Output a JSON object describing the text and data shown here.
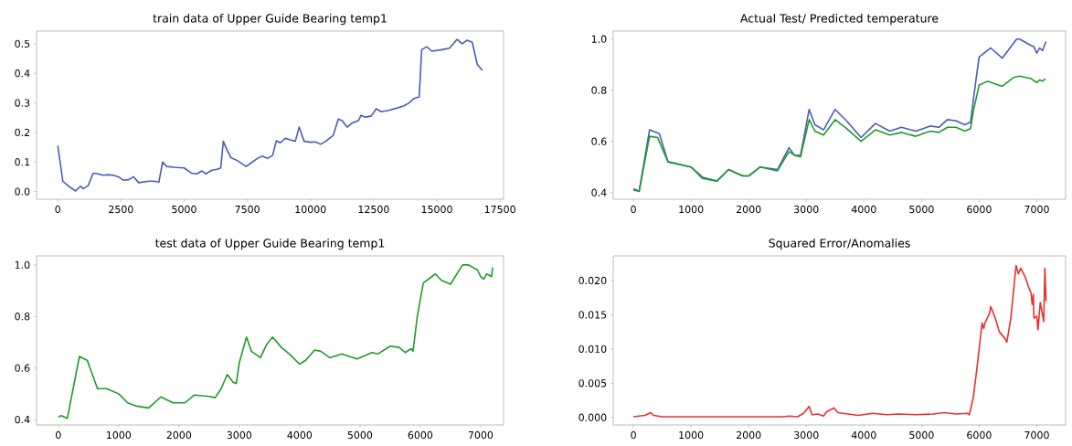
{
  "chart_data": [
    {
      "type": "line",
      "title": "train data of Upper Guide Bearing temp1",
      "xlim": [
        -840,
        17640
      ],
      "ylim": [
        -0.026,
        0.543
      ],
      "xticks": [
        0,
        2500,
        5000,
        7500,
        10000,
        12500,
        15000,
        17500
      ],
      "yticks": [
        {
          "value": 0,
          "label": "0.0"
        },
        0.1,
        0.2,
        0.3,
        0.4,
        0.5
      ],
      "series": [
        {
          "color": "#4a5bb8",
          "x": [
            0,
            200,
            400,
            600,
            700,
            900,
            1000,
            1200,
            1400,
            1600,
            1800,
            2000,
            2200,
            2400,
            2600,
            2800,
            3000,
            3200,
            3600,
            3800,
            4000,
            4150,
            4300,
            4600,
            5000,
            5300,
            5500,
            5700,
            5850,
            6100,
            6300,
            6450,
            6550,
            6700,
            6850,
            7100,
            7450,
            7700,
            7900,
            8100,
            8300,
            8500,
            8650,
            8800,
            9000,
            9200,
            9400,
            9550,
            9750,
            10000,
            10200,
            10400,
            10600,
            10900,
            11100,
            11250,
            11450,
            11650,
            11900,
            12000,
            12150,
            12400,
            12600,
            12800,
            13100,
            13400,
            13700,
            13900,
            14100,
            14300,
            14400,
            14600,
            14800,
            15200,
            15500,
            15800,
            16000,
            16200,
            16400,
            16600,
            16800
          ],
          "values": [
            0.155,
            0.035,
            0.02,
            0.008,
            0.002,
            0.018,
            0.01,
            0.02,
            0.062,
            0.06,
            0.055,
            0.057,
            0.055,
            0.05,
            0.038,
            0.04,
            0.05,
            0.03,
            0.035,
            0.035,
            0.032,
            0.1,
            0.085,
            0.082,
            0.08,
            0.062,
            0.06,
            0.07,
            0.06,
            0.072,
            0.075,
            0.08,
            0.17,
            0.14,
            0.115,
            0.105,
            0.085,
            0.1,
            0.112,
            0.12,
            0.112,
            0.122,
            0.172,
            0.165,
            0.18,
            0.175,
            0.17,
            0.218,
            0.17,
            0.167,
            0.168,
            0.16,
            0.17,
            0.19,
            0.245,
            0.24,
            0.218,
            0.232,
            0.24,
            0.258,
            0.252,
            0.255,
            0.28,
            0.27,
            0.275,
            0.282,
            0.29,
            0.3,
            0.315,
            0.32,
            0.48,
            0.49,
            0.475,
            0.48,
            0.485,
            0.515,
            0.5,
            0.512,
            0.505,
            0.43,
            0.41
          ]
        }
      ]
    },
    {
      "type": "line",
      "title": "Actual Test/ Predicted temperature",
      "xlim": [
        -350,
        7500
      ],
      "ylim": [
        0.374,
        1.031
      ],
      "xticks": [
        0,
        1000,
        2000,
        3000,
        4000,
        5000,
        6000,
        7000
      ],
      "yticks": [
        0.4,
        0.6,
        0.8,
        {
          "value": 1,
          "label": "1.0"
        }
      ],
      "series": [
        {
          "color": "#4a5bb8",
          "x": [
            0,
            100,
            280,
            450,
            600,
            1000,
            1200,
            1450,
            1650,
            1900,
            2000,
            2200,
            2500,
            2700,
            2800,
            2900,
            3050,
            3150,
            3300,
            3500,
            3700,
            3950,
            4200,
            4450,
            4650,
            4900,
            5150,
            5300,
            5450,
            5600,
            5750,
            5850,
            5950,
            6000,
            6200,
            6400,
            6650,
            6700,
            6900,
            6950,
            7000,
            7050,
            7100,
            7160
          ],
          "values": [
            0.415,
            0.405,
            0.645,
            0.63,
            0.52,
            0.5,
            0.46,
            0.445,
            0.49,
            0.465,
            0.465,
            0.5,
            0.49,
            0.575,
            0.545,
            0.545,
            0.725,
            0.665,
            0.645,
            0.725,
            0.68,
            0.615,
            0.67,
            0.64,
            0.655,
            0.64,
            0.66,
            0.655,
            0.685,
            0.68,
            0.665,
            0.675,
            0.85,
            0.93,
            0.965,
            0.925,
            1.0,
            1.0,
            0.975,
            0.97,
            0.945,
            0.965,
            0.955,
            0.99
          ]
        },
        {
          "color": "#1f9a2a",
          "x": [
            0,
            100,
            280,
            420,
            600,
            1000,
            1200,
            1450,
            1650,
            1900,
            2000,
            2200,
            2500,
            2700,
            2800,
            2900,
            3050,
            3150,
            3300,
            3500,
            3700,
            3950,
            4200,
            4450,
            4650,
            4900,
            5150,
            5300,
            5450,
            5600,
            5750,
            5850,
            5900,
            6000,
            6150,
            6400,
            6600,
            6700,
            6900,
            7000,
            7050,
            7100,
            7150
          ],
          "values": [
            0.41,
            0.405,
            0.62,
            0.615,
            0.52,
            0.5,
            0.455,
            0.445,
            0.49,
            0.465,
            0.465,
            0.5,
            0.485,
            0.56,
            0.545,
            0.54,
            0.685,
            0.64,
            0.625,
            0.685,
            0.65,
            0.6,
            0.645,
            0.625,
            0.635,
            0.62,
            0.64,
            0.635,
            0.655,
            0.655,
            0.64,
            0.65,
            0.72,
            0.82,
            0.835,
            0.815,
            0.85,
            0.855,
            0.845,
            0.83,
            0.84,
            0.835,
            0.845
          ]
        }
      ]
    },
    {
      "type": "line",
      "title": "test data of Upper Guide Bearing temp1",
      "xlim": [
        -360,
        7380
      ],
      "ylim": [
        0.379,
        1.035
      ],
      "xticks": [
        0,
        1000,
        2000,
        3000,
        4000,
        5000,
        6000,
        7000
      ],
      "yticks": [
        0.4,
        0.6,
        0.8,
        {
          "value": 1,
          "label": "1.0"
        }
      ],
      "series": [
        {
          "color": "#1f9a2a",
          "x": [
            0,
            50,
            150,
            350,
            480,
            650,
            800,
            1000,
            1150,
            1300,
            1500,
            1700,
            1900,
            2100,
            2250,
            2500,
            2600,
            2700,
            2800,
            2900,
            2950,
            3000,
            3120,
            3200,
            3350,
            3450,
            3550,
            3700,
            3850,
            4000,
            4100,
            4250,
            4350,
            4500,
            4700,
            4950,
            5200,
            5300,
            5500,
            5650,
            5750,
            5850,
            5880,
            5950,
            6050,
            6250,
            6350,
            6500,
            6700,
            6800,
            6950,
            7000,
            7050,
            7100,
            7180,
            7200
          ],
          "values": [
            0.41,
            0.415,
            0.405,
            0.645,
            0.63,
            0.52,
            0.52,
            0.5,
            0.465,
            0.452,
            0.445,
            0.488,
            0.465,
            0.465,
            0.495,
            0.49,
            0.485,
            0.52,
            0.575,
            0.545,
            0.54,
            0.62,
            0.72,
            0.665,
            0.64,
            0.69,
            0.72,
            0.68,
            0.65,
            0.615,
            0.63,
            0.67,
            0.665,
            0.64,
            0.655,
            0.635,
            0.66,
            0.655,
            0.685,
            0.68,
            0.66,
            0.675,
            0.665,
            0.8,
            0.93,
            0.965,
            0.94,
            0.925,
            1.0,
            1.0,
            0.98,
            0.955,
            0.945,
            0.965,
            0.955,
            0.99
          ]
        }
      ]
    },
    {
      "type": "line",
      "title": "Squared Error/Anomalies",
      "xlim": [
        -350,
        7500
      ],
      "ylim": [
        -0.0011,
        0.0236
      ],
      "xticks": [
        0,
        1000,
        2000,
        3000,
        4000,
        5000,
        6000,
        7000
      ],
      "yticks": [
        {
          "value": 0,
          "label": "0.000"
        },
        0.005,
        {
          "value": 0.01,
          "label": "0.010"
        },
        0.015,
        {
          "value": 0.02,
          "label": "0.020"
        }
      ],
      "series": [
        {
          "color": "#e8312f",
          "x": [
            0,
            200,
            300,
            350,
            500,
            2600,
            2700,
            2850,
            2950,
            3050,
            3100,
            3200,
            3300,
            3350,
            3480,
            3550,
            3900,
            4150,
            4400,
            4600,
            4900,
            5200,
            5400,
            5600,
            5800,
            5830,
            5900,
            5980,
            6050,
            6080,
            6100,
            6180,
            6200,
            6280,
            6350,
            6450,
            6480,
            6550,
            6640,
            6680,
            6720,
            6800,
            6860,
            6900,
            6920,
            6940,
            6950,
            7000,
            7020,
            7060,
            7120,
            7140,
            7160
          ],
          "values": [
            0.0001,
            0.0003,
            0.0007,
            0.0003,
            0.0001,
            0.0001,
            0.0002,
            0.0001,
            0.0006,
            0.0016,
            0.0004,
            0.0005,
            0.0002,
            0.0008,
            0.0014,
            0.0007,
            0.0003,
            0.0006,
            0.0004,
            0.0005,
            0.0004,
            0.0005,
            0.0007,
            0.0005,
            0.0006,
            0.0004,
            0.003,
            0.0085,
            0.0138,
            0.013,
            0.0138,
            0.0152,
            0.0162,
            0.0145,
            0.0125,
            0.0115,
            0.011,
            0.0145,
            0.0222,
            0.021,
            0.0218,
            0.0205,
            0.019,
            0.0182,
            0.0165,
            0.018,
            0.0145,
            0.0148,
            0.0128,
            0.0168,
            0.014,
            0.0218,
            0.017
          ]
        }
      ]
    }
  ]
}
